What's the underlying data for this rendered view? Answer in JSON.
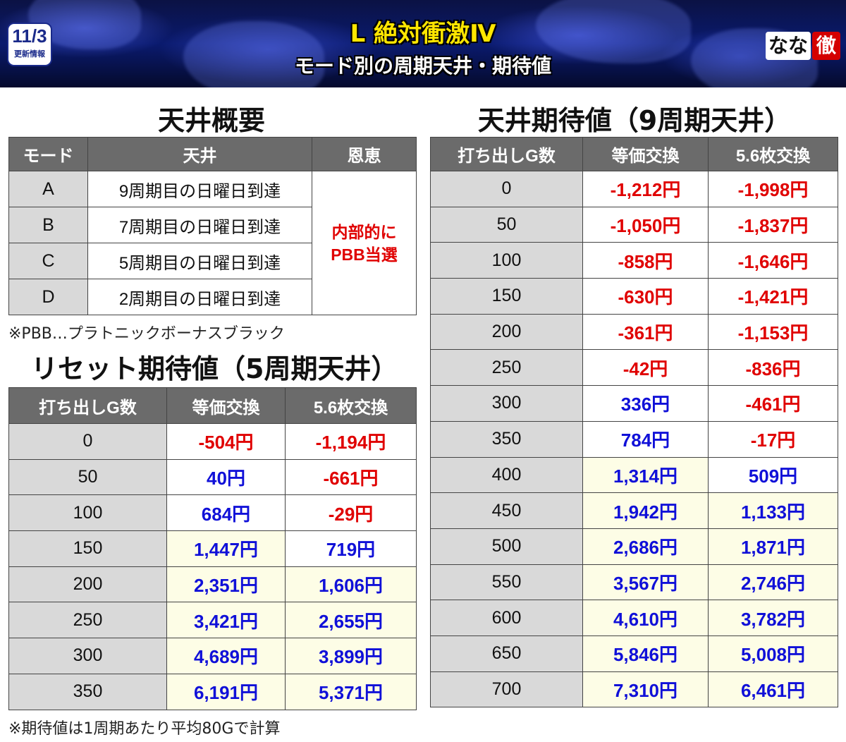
{
  "header": {
    "date": "11/3",
    "date_caption": "更新情報",
    "title": "L 絶対衝激Ⅳ",
    "subtitle": "モード別の周期天井・期待値",
    "logo_text": "なな",
    "logo_mark": "徹"
  },
  "ceiling_overview": {
    "title": "天井概要",
    "headers": [
      "モード",
      "天井",
      "恩恵"
    ],
    "rows": [
      {
        "mode": "A",
        "ceiling": "9周期目の日曜日到達"
      },
      {
        "mode": "B",
        "ceiling": "7周期目の日曜日到達"
      },
      {
        "mode": "C",
        "ceiling": "5周期目の日曜日到達"
      },
      {
        "mode": "D",
        "ceiling": "2周期目の日曜日到達"
      }
    ],
    "benefit_line1": "内部的に",
    "benefit_line2": "PBB当選",
    "note": "※PBB…プラトニックボーナスブラック"
  },
  "reset_ev": {
    "title": "リセット期待値（5周期天井）",
    "headers": [
      "打ち出しG数",
      "等価交換",
      "5.6枚交換"
    ],
    "rows": [
      {
        "g": "0",
        "eq": "-504円",
        "ex": "-1,194円"
      },
      {
        "g": "50",
        "eq": "40円",
        "ex": "-661円"
      },
      {
        "g": "100",
        "eq": "684円",
        "ex": "-29円"
      },
      {
        "g": "150",
        "eq": "1,447円",
        "ex": "719円"
      },
      {
        "g": "200",
        "eq": "2,351円",
        "ex": "1,606円"
      },
      {
        "g": "250",
        "eq": "3,421円",
        "ex": "2,655円"
      },
      {
        "g": "300",
        "eq": "4,689円",
        "ex": "3,899円"
      },
      {
        "g": "350",
        "eq": "6,191円",
        "ex": "5,371円"
      }
    ],
    "note": "※期待値は1周期あたり平均80Gで計算"
  },
  "ceiling_ev": {
    "title": "天井期待値（9周期天井）",
    "headers": [
      "打ち出しG数",
      "等価交換",
      "5.6枚交換"
    ],
    "rows": [
      {
        "g": "0",
        "eq": "-1,212円",
        "ex": "-1,998円"
      },
      {
        "g": "50",
        "eq": "-1,050円",
        "ex": "-1,837円"
      },
      {
        "g": "100",
        "eq": "-858円",
        "ex": "-1,646円"
      },
      {
        "g": "150",
        "eq": "-630円",
        "ex": "-1,421円"
      },
      {
        "g": "200",
        "eq": "-361円",
        "ex": "-1,153円"
      },
      {
        "g": "250",
        "eq": "-42円",
        "ex": "-836円"
      },
      {
        "g": "300",
        "eq": "336円",
        "ex": "-461円"
      },
      {
        "g": "350",
        "eq": "784円",
        "ex": "-17円"
      },
      {
        "g": "400",
        "eq": "1,314円",
        "ex": "509円"
      },
      {
        "g": "450",
        "eq": "1,942円",
        "ex": "1,133円"
      },
      {
        "g": "500",
        "eq": "2,686円",
        "ex": "1,871円"
      },
      {
        "g": "550",
        "eq": "3,567円",
        "ex": "2,746円"
      },
      {
        "g": "600",
        "eq": "4,610円",
        "ex": "3,782円"
      },
      {
        "g": "650",
        "eq": "5,846円",
        "ex": "5,008円"
      },
      {
        "g": "700",
        "eq": "7,310円",
        "ex": "6,461円"
      }
    ]
  },
  "colors": {
    "negative": "#e00000",
    "positive": "#1010d8",
    "highlight_bg": "#fdfde6",
    "header_bg": "#6b6b6b",
    "rowhead_bg": "#d9d9d9"
  }
}
